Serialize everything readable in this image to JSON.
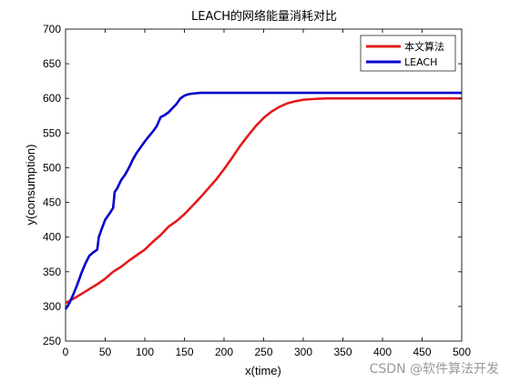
{
  "chart_data": {
    "type": "line",
    "title": "LEACH的网络能量消耗对比",
    "xlabel": "x(time)",
    "ylabel": "y(consumption)",
    "xlim": [
      0,
      500
    ],
    "ylim": [
      250,
      700
    ],
    "xticks": [
      0,
      50,
      100,
      150,
      200,
      250,
      300,
      350,
      400,
      450,
      500
    ],
    "yticks": [
      250,
      300,
      350,
      400,
      450,
      500,
      550,
      600,
      650,
      700
    ],
    "grid": false,
    "legend_position": "top-right",
    "series": [
      {
        "name": "本文算法",
        "color": "#e41a1c",
        "x": [
          0,
          10,
          20,
          30,
          40,
          50,
          60,
          70,
          80,
          90,
          100,
          110,
          120,
          130,
          140,
          150,
          160,
          170,
          180,
          190,
          200,
          210,
          220,
          230,
          240,
          250,
          260,
          270,
          280,
          290,
          300,
          310,
          320,
          330,
          340,
          360,
          400,
          450,
          500
        ],
        "y": [
          305,
          311,
          318,
          325,
          332,
          340,
          350,
          357,
          366,
          374,
          382,
          393,
          403,
          415,
          423,
          433,
          445,
          457,
          470,
          483,
          498,
          514,
          531,
          546,
          560,
          572,
          581,
          588,
          593,
          596,
          598,
          599,
          599.5,
          600,
          600,
          600,
          600,
          600,
          600
        ]
      },
      {
        "name": "LEACH",
        "color": "#0000cd",
        "x": [
          0,
          5,
          10,
          15,
          20,
          25,
          30,
          35,
          40,
          42,
          45,
          50,
          55,
          60,
          62,
          65,
          70,
          75,
          80,
          85,
          90,
          95,
          100,
          105,
          110,
          115,
          118,
          120,
          125,
          130,
          135,
          140,
          145,
          150,
          155,
          160,
          165,
          170,
          180,
          200,
          250,
          300,
          350,
          400,
          450,
          500
        ],
        "y": [
          296,
          305,
          318,
          332,
          348,
          362,
          373,
          378,
          382,
          400,
          410,
          425,
          433,
          442,
          465,
          470,
          482,
          490,
          500,
          512,
          522,
          530,
          538,
          545,
          552,
          560,
          568,
          573,
          576,
          580,
          586,
          592,
          600,
          604,
          606,
          607,
          607.5,
          608,
          608,
          608,
          608,
          608,
          608,
          608,
          608,
          608
        ]
      }
    ]
  },
  "watermark": "CSDN @软件算法开发"
}
